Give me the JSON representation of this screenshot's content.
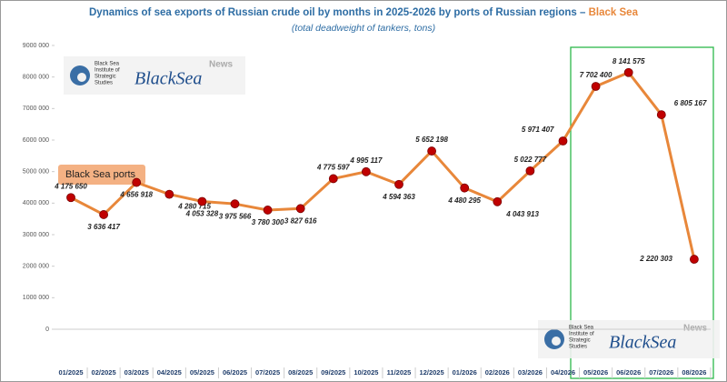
{
  "chart_data": {
    "type": "line",
    "title": "Dynamics of sea exports of Russian crude oil by months in 2025-2026 by ports of Russian regions –",
    "title_highlight": "Black Sea",
    "subtitle": "(total deadweight of tankers, tons)",
    "categories": [
      "01/2025",
      "02/2025",
      "03/2025",
      "04/2025",
      "05/2025",
      "06/2025",
      "07/2025",
      "08/2025",
      "09/2025",
      "10/2025",
      "11/2025",
      "12/2025",
      "01/2026",
      "02/2026",
      "03/2026",
      "04/2026",
      "05/2026",
      "06/2026",
      "07/2026",
      "08/2026"
    ],
    "series": [
      {
        "name": "Black Sea ports",
        "color": "#e8873a",
        "marker_color": "#c00000",
        "values": [
          4175650,
          3636417,
          4656918,
          4280715,
          4053328,
          3975566,
          3780300,
          3827616,
          4775597,
          4995117,
          4594363,
          5652198,
          4480295,
          4043913,
          5022777,
          5971407,
          7702400,
          8141575,
          6805167,
          2220303
        ],
        "value_labels": [
          "4 175 650",
          "3 636 417",
          "4 656 918",
          "4 280 715",
          "4 053 328",
          "3 975 566",
          "3 780 300",
          "3 827 616",
          "4 775 597",
          "4 995 117",
          "4 594 363",
          "5 652 198",
          "4 480 295",
          "4 043 913",
          "5 022 777",
          "5 971 407",
          "7 702 400",
          "8 141 575",
          "6 805 167",
          "2 220 303"
        ]
      }
    ],
    "ylim": [
      0,
      9000000
    ],
    "yticks": [
      0,
      {
        "value": 1000000,
        "label": "1000 000"
      },
      {
        "value": 2000000,
        "label": "2000 000"
      },
      {
        "value": 3000000,
        "label": "3000 000"
      },
      {
        "value": 4000000,
        "label": "4000 000"
      },
      {
        "value": 5000000,
        "label": "5000 000"
      },
      {
        "value": 6000000,
        "label": "6000 000"
      },
      {
        "value": 7000000,
        "label": "7000 000"
      },
      {
        "value": 8000000,
        "label": "8000 000"
      },
      {
        "value": 9000000,
        "label": "9000 000"
      }
    ],
    "grid": false
  },
  "logo": {
    "institute": [
      "Black Sea",
      "Institute of",
      "Strategic",
      "Studies"
    ],
    "brand": "BlackSea",
    "brand_tag": "News"
  }
}
